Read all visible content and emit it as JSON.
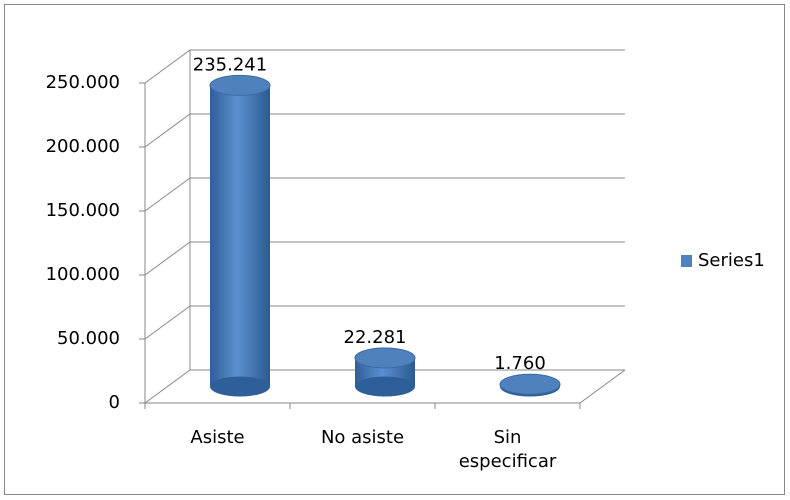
{
  "chart_data": {
    "type": "bar3d",
    "categories": [
      "Asiste",
      "No asiste",
      "Sin especificar"
    ],
    "series": [
      {
        "name": "Series1",
        "color": "#4f81bd",
        "values": [
          235241,
          22281,
          1760
        ],
        "value_labels": [
          "235.241",
          "22.281",
          "1.760"
        ]
      }
    ],
    "ylim": [
      0,
      250000
    ],
    "yticks": [
      0,
      {
        "value": 50000,
        "label": "50.000"
      },
      {
        "value": 100000,
        "label": "100.000"
      },
      {
        "value": 150000,
        "label": "150.000"
      },
      {
        "value": 200000,
        "label": "200.000"
      },
      {
        "value": 250000,
        "label": "250.000"
      }
    ],
    "grid": true,
    "legend": "right"
  }
}
